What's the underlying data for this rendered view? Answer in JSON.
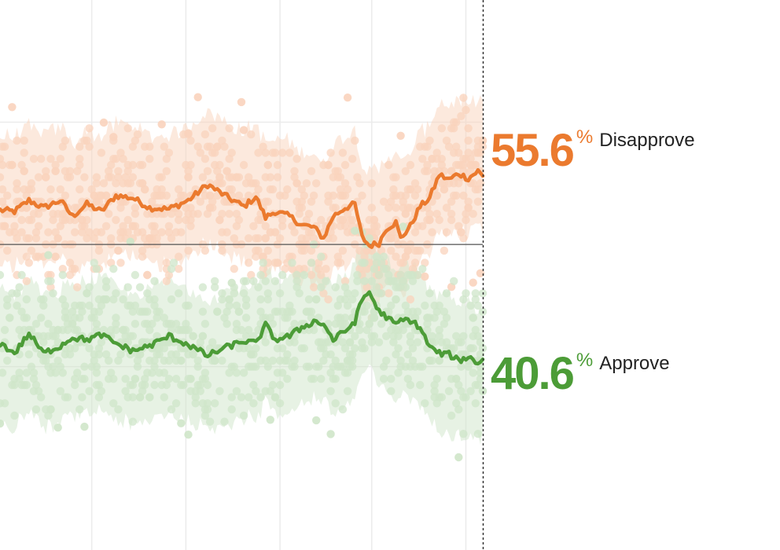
{
  "colors": {
    "disapprove": "#EB7A2E",
    "approve": "#4C9C37",
    "disapprove_light": "#F9D3BC",
    "approve_light": "#CFE5C9",
    "grid": "#EBEBEB",
    "reference_line": "#555555"
  },
  "labels": {
    "disapprove_value": "55.6",
    "disapprove_suffix": "%",
    "disapprove_text": "Disapprove",
    "approve_value": "40.6",
    "approve_suffix": "%",
    "approve_text": "Approve"
  },
  "chart_data": {
    "type": "line",
    "x_unit": "day index",
    "x_range": [
      0,
      200
    ],
    "y_range": [
      25,
      70
    ],
    "reference_line": 50,
    "gridlines_y": [
      40,
      50,
      60
    ],
    "gridlines_x": [
      38,
      77,
      116,
      154,
      193
    ],
    "current_marker_x": 200,
    "series": [
      {
        "name": "Disapprove",
        "final_value": 55.6,
        "knots": [
          [
            0,
            52.8
          ],
          [
            6,
            52.7
          ],
          [
            12,
            53.6
          ],
          [
            18,
            53.0
          ],
          [
            25,
            53.6
          ],
          [
            30,
            52.3
          ],
          [
            36,
            53.3
          ],
          [
            42,
            52.7
          ],
          [
            48,
            54.0
          ],
          [
            55,
            53.8
          ],
          [
            62,
            53.0
          ],
          [
            70,
            52.9
          ],
          [
            78,
            53.6
          ],
          [
            86,
            54.9
          ],
          [
            94,
            53.9
          ],
          [
            101,
            53.1
          ],
          [
            106,
            53.9
          ],
          [
            110,
            52.2
          ],
          [
            114,
            52.7
          ],
          [
            120,
            52.3
          ],
          [
            125,
            51.6
          ],
          [
            130,
            51.4
          ],
          [
            134,
            50.5
          ],
          [
            138,
            52.3
          ],
          [
            143,
            53.0
          ],
          [
            147,
            53.3
          ],
          [
            150,
            50.6
          ],
          [
            153,
            49.9
          ],
          [
            157,
            50.1
          ],
          [
            160,
            51.3
          ],
          [
            164,
            51.8
          ],
          [
            166,
            50.5
          ],
          [
            170,
            51.5
          ],
          [
            174,
            53.1
          ],
          [
            178,
            53.8
          ],
          [
            182,
            55.7
          ],
          [
            186,
            55.3
          ],
          [
            190,
            55.8
          ],
          [
            194,
            55.4
          ],
          [
            198,
            56.0
          ],
          [
            200,
            55.6
          ]
        ],
        "band_upper_offset": 6.0,
        "band_lower_offset": 4.6
      },
      {
        "name": "Approve",
        "final_value": 40.6,
        "knots": [
          [
            0,
            41.9
          ],
          [
            6,
            41.1
          ],
          [
            12,
            42.7
          ],
          [
            18,
            41.1
          ],
          [
            25,
            41.7
          ],
          [
            30,
            42.4
          ],
          [
            36,
            42.2
          ],
          [
            42,
            42.6
          ],
          [
            48,
            41.9
          ],
          [
            55,
            41.3
          ],
          [
            62,
            41.7
          ],
          [
            70,
            42.5
          ],
          [
            78,
            41.8
          ],
          [
            86,
            40.9
          ],
          [
            94,
            41.6
          ],
          [
            101,
            42.1
          ],
          [
            106,
            41.9
          ],
          [
            110,
            43.4
          ],
          [
            114,
            42.2
          ],
          [
            120,
            42.5
          ],
          [
            125,
            43.2
          ],
          [
            130,
            43.7
          ],
          [
            134,
            43.5
          ],
          [
            138,
            42.2
          ],
          [
            143,
            42.9
          ],
          [
            147,
            43.7
          ],
          [
            150,
            45.5
          ],
          [
            153,
            46.1
          ],
          [
            157,
            44.5
          ],
          [
            160,
            44.1
          ],
          [
            164,
            43.4
          ],
          [
            166,
            43.8
          ],
          [
            170,
            43.8
          ],
          [
            174,
            43.2
          ],
          [
            178,
            41.6
          ],
          [
            182,
            41.1
          ],
          [
            186,
            41.0
          ],
          [
            190,
            40.5
          ],
          [
            194,
            40.8
          ],
          [
            198,
            40.3
          ],
          [
            200,
            40.6
          ]
        ],
        "band_upper_offset": 4.6,
        "band_lower_offset": 6.2
      }
    ],
    "polls_per_day": 5,
    "poll_spread": 3.0
  }
}
